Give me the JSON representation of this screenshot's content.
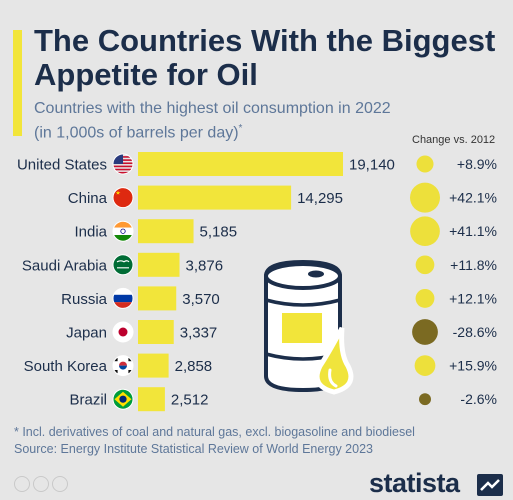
{
  "header": {
    "title": "The Countries With the Biggest Appetite for Oil",
    "subtitle": "Countries with the highest oil consumption in 2022 (in 1,000s of barrels per day)",
    "subtitle_marker": "*",
    "change_header": "Change vs. 2012"
  },
  "chart_data": {
    "type": "bar",
    "orientation": "horizontal",
    "categories": [
      "United States",
      "China",
      "India",
      "Saudi Arabia",
      "Russia",
      "Japan",
      "South Korea",
      "Brazil"
    ],
    "values": [
      19140,
      14295,
      5185,
      3876,
      3570,
      3337,
      2858,
      2512
    ],
    "value_labels": [
      "19,140",
      "14,295",
      "5,185",
      "3,876",
      "3,570",
      "3,337",
      "2,858",
      "2,512"
    ],
    "change_vs_2012": [
      8.9,
      42.1,
      41.1,
      11.8,
      12.1,
      -28.6,
      15.9,
      -2.6
    ],
    "change_labels": [
      "+8.9%",
      "+42.1%",
      "+41.1%",
      "+11.8%",
      "+12.1%",
      "-28.6%",
      "+15.9%",
      "-2.6%"
    ],
    "flags": [
      "us-flag-icon",
      "china-flag-icon",
      "india-flag-icon",
      "saudi-arabia-flag-icon",
      "russia-flag-icon",
      "japan-flag-icon",
      "south-korea-flag-icon",
      "brazil-flag-icon"
    ],
    "colors": {
      "bar": "#f2e53a",
      "positive_bubble": "#ede03b",
      "negative_bubble": "#7b6a22"
    }
  },
  "footer": {
    "footnote": "* Incl. derivatives of coal and natural gas, excl. biogasoline and biodiesel",
    "source": "Source: Energy Institute Statistical Review of World Energy 2023",
    "brand": "statista"
  },
  "colors": {
    "background": "#e6e6e6",
    "title": "#1c2e4a",
    "subtitle": "#5e7799",
    "accent": "#f2e53a"
  }
}
